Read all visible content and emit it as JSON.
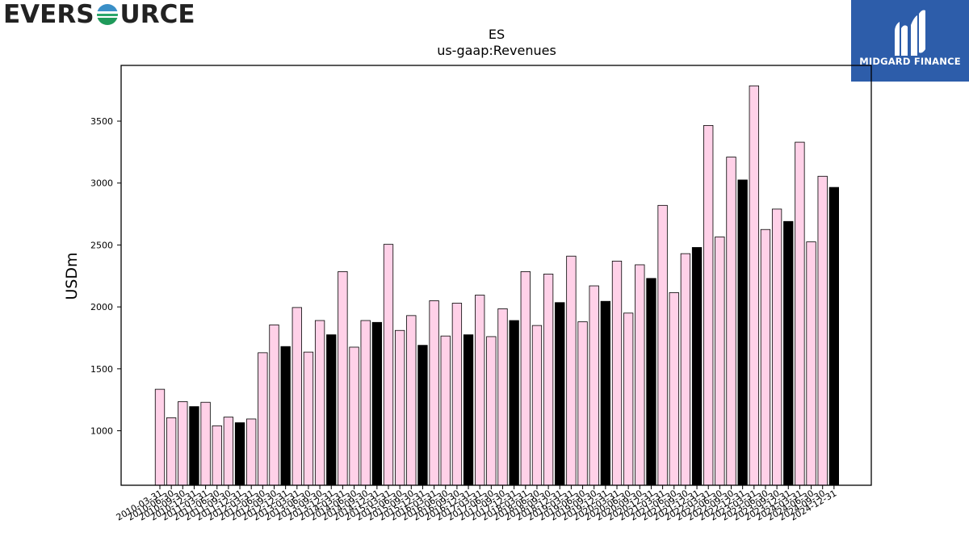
{
  "header": {
    "left_brand_prefix": "EVERS",
    "left_brand_suffix": "URCE",
    "right_brand": "MIDGARD FINANCE",
    "logo_icon": "eversource-globe-icon",
    "right_logo_icon": "midgard-m-icon"
  },
  "colors": {
    "bar_default": "#ffd1e8",
    "bar_q4": "#000000",
    "bar_edge": "#000000",
    "brand_blue": "#2d5daa"
  },
  "chart_data": {
    "type": "bar",
    "title": "ES",
    "subtitle": "us-gaap:Revenues",
    "xlabel": "",
    "ylabel": "USDm",
    "ylim": [
      560,
      3950
    ],
    "yticks": [
      1000,
      1500,
      2000,
      2500,
      3000,
      3500
    ],
    "grid": false,
    "categories": [
      "2010-03-31",
      "2010-06-30",
      "2010-09-30",
      "2010-12-31",
      "2011-03-31",
      "2011-06-30",
      "2011-09-30",
      "2011-12-31",
      "2012-03-31",
      "2012-06-30",
      "2012-09-30",
      "2012-12-31",
      "2013-03-31",
      "2013-06-30",
      "2013-09-30",
      "2013-12-31",
      "2014-03-31",
      "2014-06-30",
      "2014-09-30",
      "2014-12-31",
      "2015-03-31",
      "2015-06-30",
      "2015-09-30",
      "2015-12-31",
      "2016-03-31",
      "2016-06-30",
      "2016-09-30",
      "2016-12-31",
      "2017-03-31",
      "2017-06-30",
      "2017-09-30",
      "2017-12-31",
      "2018-03-31",
      "2018-06-30",
      "2018-09-30",
      "2018-12-31",
      "2019-03-31",
      "2019-06-30",
      "2019-09-30",
      "2019-12-31",
      "2020-03-31",
      "2020-06-30",
      "2020-09-30",
      "2020-12-31",
      "2021-03-31",
      "2021-06-30",
      "2021-09-30",
      "2021-12-31",
      "2022-03-31",
      "2022-06-30",
      "2022-09-30",
      "2022-12-31",
      "2023-03-31",
      "2023-06-30",
      "2023-09-30",
      "2023-12-31",
      "2024-03-31",
      "2024-06-30",
      "2024-09-30",
      "2024-12-31"
    ],
    "values": [
      1335,
      1105,
      1235,
      1195,
      1230,
      1040,
      1110,
      1065,
      1095,
      1630,
      1855,
      1680,
      1995,
      1635,
      1890,
      1775,
      2285,
      1675,
      1890,
      1875,
      2505,
      1810,
      1930,
      1690,
      2050,
      1765,
      2030,
      1775,
      2095,
      1760,
      1985,
      1890,
      2285,
      1850,
      2265,
      2035,
      2410,
      1880,
      2170,
      2045,
      2370,
      1950,
      2340,
      2230,
      2820,
      2115,
      2430,
      2480,
      3465,
      2565,
      3210,
      3025,
      3785,
      2625,
      2790,
      2690,
      3330,
      2525,
      3055,
      2965
    ],
    "highlight": "December quarters drawn black"
  }
}
